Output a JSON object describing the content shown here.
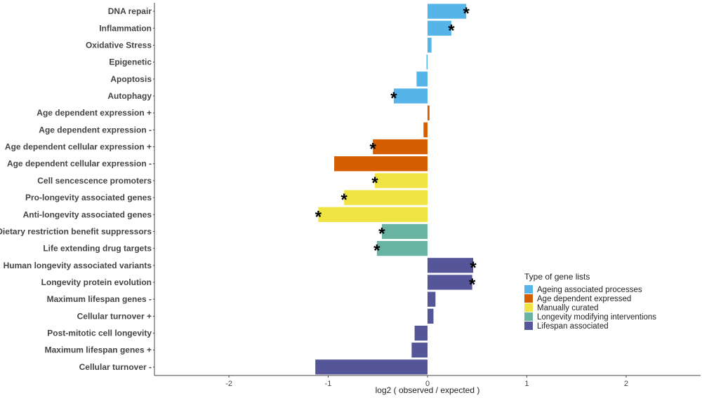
{
  "chart_data": {
    "type": "bar",
    "orientation": "horizontal",
    "title": "",
    "xlabel": "log2 ( observed / expected )",
    "ylabel": "",
    "xlim": [
      -2.75,
      2.75
    ],
    "xticks": [
      -2,
      -1,
      0,
      1,
      2
    ],
    "xtick_labels": [
      "-2",
      "-1",
      "0",
      "1",
      "2"
    ],
    "grid": false,
    "legend": {
      "title": "Type of gene lists",
      "position": "right",
      "entries": [
        {
          "name": "Ageing associated processes",
          "color": "#56B4E9"
        },
        {
          "name": "Age dependent expressed",
          "color": "#D55E00"
        },
        {
          "name": "Manually curated",
          "color": "#F0E442"
        },
        {
          "name": "Longevity modifying interventions",
          "color": "#69B3A2"
        },
        {
          "name": "Lifespan associated",
          "color": "#555599"
        }
      ]
    },
    "significance_marker": "*",
    "bars": [
      {
        "label": "DNA repair",
        "value": 0.39,
        "group": 0,
        "significant": true
      },
      {
        "label": "Inflammation",
        "value": 0.24,
        "group": 0,
        "significant": true
      },
      {
        "label": "Oxidative Stress",
        "value": 0.04,
        "group": 0,
        "significant": false
      },
      {
        "label": "Epigenetic",
        "value": -0.01,
        "group": 0,
        "significant": false
      },
      {
        "label": "Apoptosis",
        "value": -0.11,
        "group": 0,
        "significant": false
      },
      {
        "label": "Autophagy",
        "value": -0.34,
        "group": 0,
        "significant": true
      },
      {
        "label": "Age dependent expression +",
        "value": 0.02,
        "group": 1,
        "significant": false
      },
      {
        "label": "Age dependent expression -",
        "value": -0.04,
        "group": 1,
        "significant": false
      },
      {
        "label": "Age dependent cellular expression +",
        "value": -0.55,
        "group": 1,
        "significant": true
      },
      {
        "label": "Age dependent cellular expression -",
        "value": -0.94,
        "group": 1,
        "significant": false
      },
      {
        "label": "Cell sencescence promoters",
        "value": -0.53,
        "group": 2,
        "significant": true
      },
      {
        "label": "Pro-longevity associated genes",
        "value": -0.84,
        "group": 2,
        "significant": true
      },
      {
        "label": "Anti-longevity associated genes",
        "value": -1.1,
        "group": 2,
        "significant": true
      },
      {
        "label": "Dietary restriction benefit suppressors",
        "value": -0.46,
        "group": 3,
        "significant": true
      },
      {
        "label": "Life extending drug targets",
        "value": -0.51,
        "group": 3,
        "significant": true
      },
      {
        "label": "Human longevity associated variants",
        "value": 0.46,
        "group": 4,
        "significant": true
      },
      {
        "label": "Longevity protein evolution",
        "value": 0.45,
        "group": 4,
        "significant": true
      },
      {
        "label": "Maximum lifespan genes -",
        "value": 0.08,
        "group": 4,
        "significant": false
      },
      {
        "label": "Cellular turnover +",
        "value": 0.06,
        "group": 4,
        "significant": false
      },
      {
        "label": "Post-mitotic cell longevity",
        "value": -0.13,
        "group": 4,
        "significant": false
      },
      {
        "label": "Maximum lifespan genes +",
        "value": -0.16,
        "group": 4,
        "significant": false
      },
      {
        "label": "Cellular turnover -",
        "value": -1.13,
        "group": 4,
        "significant": false
      }
    ]
  }
}
